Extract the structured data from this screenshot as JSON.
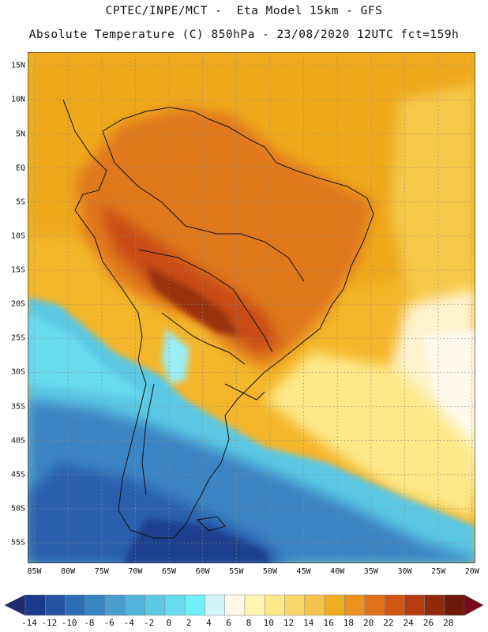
{
  "header": {
    "line1": "CPTEC/INPE/MCT -  Eta Model 15km - GFS",
    "line2": "Absolute Temperature (C) 850hPa - 23/08/2020 12UTC fct=159h"
  },
  "axes": {
    "lat_labels": [
      "15N",
      "10N",
      "5N",
      "EQ",
      "5S",
      "10S",
      "15S",
      "20S",
      "25S",
      "30S",
      "35S",
      "40S",
      "45S",
      "50S",
      "55S"
    ],
    "lat_values": [
      15,
      10,
      5,
      0,
      -5,
      -10,
      -15,
      -20,
      -25,
      -30,
      -35,
      -40,
      -45,
      -50,
      -55
    ],
    "lon_labels": [
      "85W",
      "80W",
      "75W",
      "70W",
      "65W",
      "60W",
      "55W",
      "50W",
      "45W",
      "40W",
      "35W",
      "30W",
      "25W",
      "20W"
    ],
    "lon_values": [
      -85,
      -80,
      -75,
      -70,
      -65,
      -60,
      -55,
      -50,
      -45,
      -40,
      -35,
      -30,
      -25,
      -20
    ],
    "lat_range": [
      -58,
      17
    ],
    "lon_range": [
      -86,
      -19.5
    ]
  },
  "colorbar": {
    "labels": [
      "-14",
      "-12",
      "-10",
      "-8",
      "-6",
      "-4",
      "-2",
      "0",
      "2",
      "4",
      "6",
      "8",
      "10",
      "12",
      "14",
      "16",
      "18",
      "20",
      "22",
      "24",
      "26",
      "28"
    ],
    "colors": [
      "#1b3a8c",
      "#2653a3",
      "#2e6cb5",
      "#3a84c4",
      "#4a9ccc",
      "#52b4d8",
      "#5cc8e4",
      "#66dcee",
      "#70f0f8",
      "#d2f4f6",
      "#fff8e6",
      "#fff5b0",
      "#fde98a",
      "#f9d66a",
      "#f4c44c",
      "#efad20",
      "#ea9120",
      "#e0701a",
      "#cf5614",
      "#b53c10",
      "#912a0c",
      "#6e1a08"
    ],
    "left_arrow_color": "#1a2a6c",
    "right_arrow_color": "#7a0a1a"
  },
  "map": {
    "field_description_colors": {
      "cold_deep": "#2653a3",
      "cold": "#3a84c4",
      "cool": "#52b4d8",
      "cyan": "#66dcee",
      "pale": "#fff8e6",
      "mild": "#f4c44c",
      "warm": "#efad20",
      "hot": "#e0701a",
      "very_hot": "#b53c10"
    },
    "grid": "dotted"
  }
}
